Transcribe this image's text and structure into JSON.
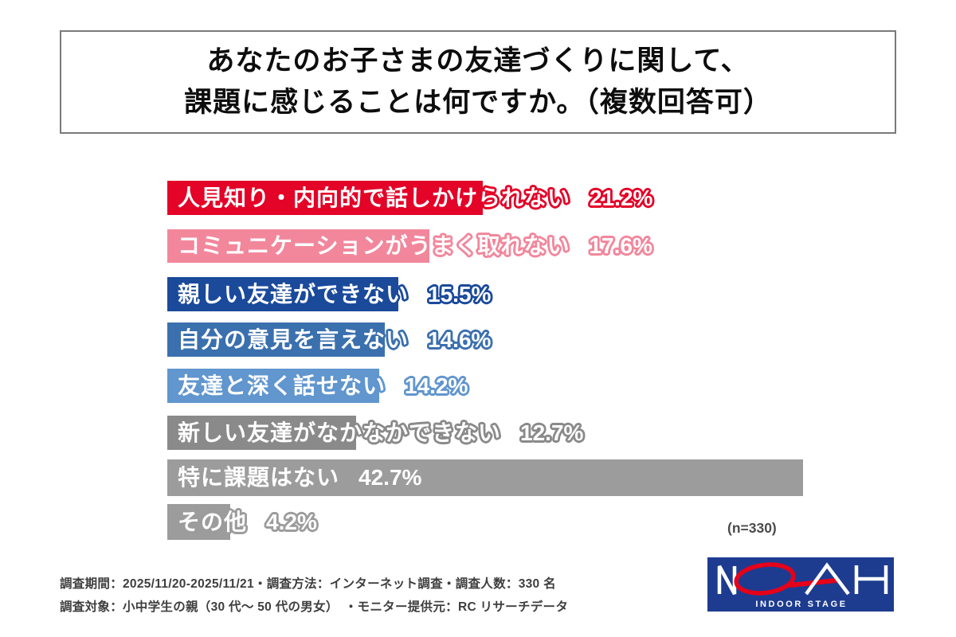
{
  "title": {
    "line1": "あなたのお子さまの友達づくりに関して、",
    "line2": "課題に感じることは何ですか。（複数回答可）"
  },
  "chart_data": {
    "type": "bar",
    "orientation": "horizontal",
    "unit": "%",
    "xlim": [
      0,
      45
    ],
    "grid": false,
    "legend": "none",
    "categories": [
      "人見知り・内向的で話しかけられない",
      "コミュニケーションがうまく取れない",
      "親しい友達ができない",
      "自分の意見を言えない",
      "友達と深く話せない",
      "新しい友達がなかなかできない",
      "特に課題はない",
      "その他"
    ],
    "values": [
      21.2,
      17.6,
      15.5,
      14.6,
      14.2,
      12.7,
      42.7,
      4.2
    ],
    "value_labels": [
      "21.2%",
      "17.6%",
      "15.5%",
      "14.6%",
      "14.2%",
      "12.7%",
      "42.7%",
      "4.2%"
    ],
    "colors": [
      "#e30428",
      "#f2879c",
      "#1b4a9b",
      "#3b70ae",
      "#6196ce",
      "#8a8a8a",
      "#9c9c9c",
      "#9c9c9c"
    ],
    "sample_note": "(n=330)"
  },
  "footer": {
    "line1": "調査期間：2025/11/20-2025/11/21・調査方法：インターネット調査・調査人数：330 名",
    "line2": "調査対象：小中学生の親（30 代〜 50 代の男女）　・モニター提供元：RC リサーチデータ"
  },
  "logo": {
    "brand": "NOAH",
    "subtitle": "INDOOR STAGE",
    "bg_color": "#1d3c90",
    "accent_color": "#e60019",
    "text_color": "#ffffff"
  }
}
